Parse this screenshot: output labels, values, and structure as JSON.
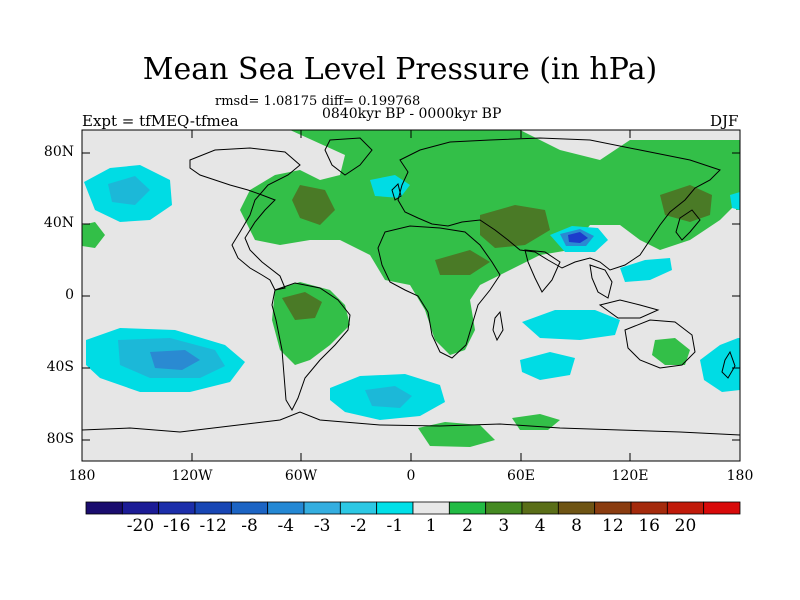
{
  "title": "Mean Sea Level Pressure (in hPa)",
  "stats": "rmsd= 1.08175 diff= 0.199768",
  "period": "0840kyr BP - 0000kyr BP",
  "experiment": "Expt = tfMEQ-tfmea",
  "season": "DJF",
  "y_axis": {
    "labels": [
      "80N",
      "40N",
      "0",
      "40S",
      "80S"
    ]
  },
  "x_axis": {
    "labels": [
      "180",
      "120W",
      "60W",
      "0",
      "60E",
      "120E",
      "180"
    ]
  },
  "colorbar": {
    "labels": [
      "-20",
      "-16",
      "-12",
      "-8",
      "-4",
      "-3",
      "-2",
      "-1",
      "1",
      "2",
      "3",
      "4",
      "8",
      "12",
      "16",
      "20"
    ],
    "colors": [
      "#1a0c6e",
      "#1c1c96",
      "#1c2eaa",
      "#1846b4",
      "#1c64c4",
      "#2488d4",
      "#34aee0",
      "#2cc8e4",
      "#00e0e8",
      "#e8e8e8",
      "#22bb44",
      "#448a22",
      "#5a6e18",
      "#6e5414",
      "#8a3c10",
      "#a42a0c",
      "#c01a0a",
      "#d80a0a"
    ]
  },
  "field_colors": {
    "background": "#e6e6e6",
    "positive_1": "#33bf48",
    "positive_3": "#4a7a26",
    "negative_1": "#00dce4",
    "negative_2": "#1cb8d8",
    "negative_3": "#2a8ad2",
    "negative_strong": "#1c3ccc"
  }
}
